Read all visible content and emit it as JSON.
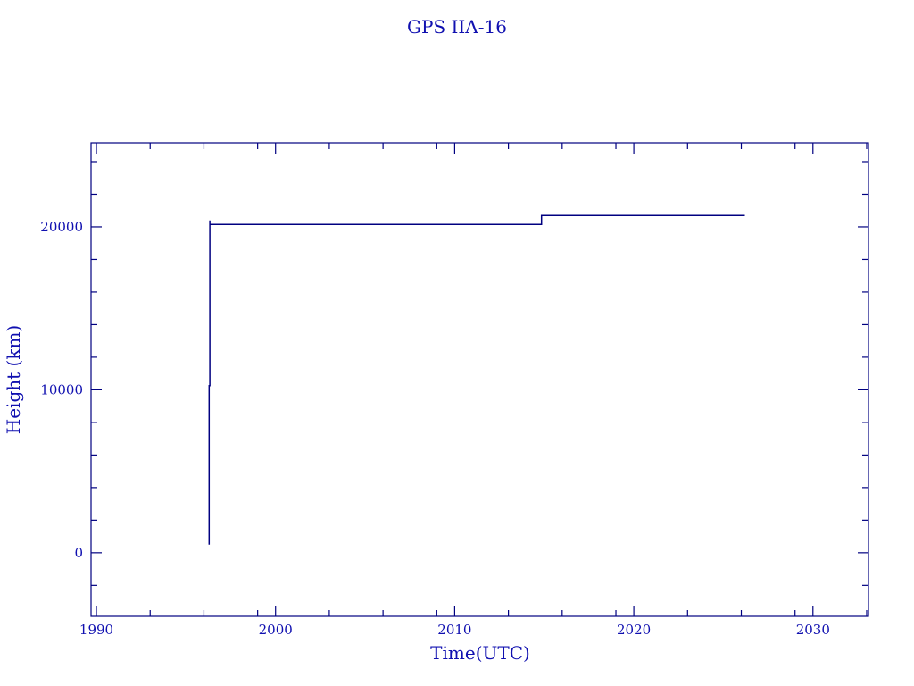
{
  "chart_data": {
    "type": "line",
    "title": "GPS IIA-16",
    "xlabel": "Time(UTC)",
    "ylabel": "Height (km)",
    "xlim": [
      1989.7,
      2033.1
    ],
    "ylim": [
      -3900,
      25150
    ],
    "x_ticks": [
      1990,
      2000,
      2010,
      2020,
      2030
    ],
    "y_ticks": [
      0,
      10000,
      20000
    ],
    "grid": false,
    "line_color": "#000080",
    "text_color": "#1010b0",
    "series": [
      {
        "step": true,
        "x": [
          1996.29,
          1996.29,
          1996.33,
          1996.33,
          1996.33,
          2014.85,
          2014.85,
          2026.2
        ],
        "y": [
          500,
          10250,
          10250,
          20400,
          20150,
          20150,
          20700,
          20700
        ]
      }
    ]
  }
}
